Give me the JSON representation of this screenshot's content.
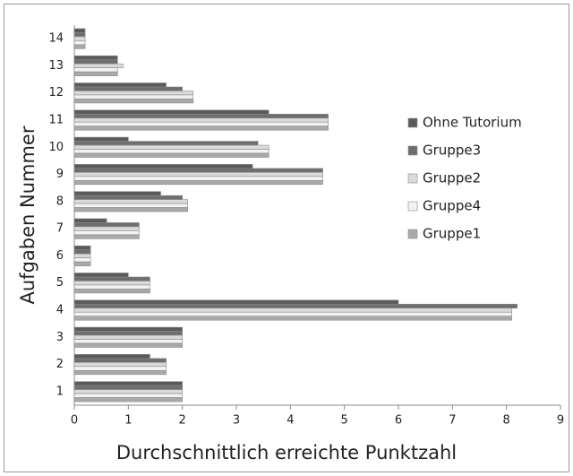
{
  "chart_data": {
    "type": "hbar",
    "xlabel": "Durchschnittlich erreichte Punktzahl",
    "ylabel": "Aufgaben Nummer",
    "categories": [
      "1",
      "2",
      "3",
      "4",
      "5",
      "6",
      "7",
      "8",
      "9",
      "10",
      "11",
      "12",
      "13",
      "14"
    ],
    "series": [
      {
        "name": "Ohne Tutorium",
        "color": "#5a5a5a",
        "values": [
          2,
          1.4,
          2,
          6,
          1,
          0.3,
          0.6,
          1.6,
          3.3,
          1,
          3.6,
          1.7,
          0.8,
          0.2
        ]
      },
      {
        "name": "Gruppe3",
        "color": "#6e6e6e",
        "values": [
          2,
          1.7,
          2,
          8.2,
          1.4,
          0.3,
          1.2,
          2,
          4.6,
          3.4,
          4.7,
          2,
          0.8,
          0.2
        ]
      },
      {
        "name": "Gruppe2",
        "color": "#dadada",
        "values": [
          2,
          1.7,
          2,
          8.1,
          1.4,
          0.3,
          1.2,
          2.1,
          4.6,
          3.6,
          4.7,
          2.2,
          0.9,
          0.2
        ]
      },
      {
        "name": "Gruppe4",
        "color": "#f2f2f2",
        "values": [
          2,
          1.7,
          2,
          8.1,
          1.4,
          0.3,
          1.2,
          2.1,
          4.6,
          3.6,
          4.7,
          2.2,
          0.8,
          0.2
        ]
      },
      {
        "name": "Gruppe1",
        "color": "#a9a9a9",
        "values": [
          2,
          1.7,
          2,
          8.1,
          1.4,
          0.3,
          1.2,
          2.1,
          4.6,
          3.6,
          4.7,
          2.2,
          0.8,
          0.2
        ]
      }
    ],
    "xlim": [
      0,
      9
    ],
    "xticks": [
      0,
      1,
      2,
      3,
      4,
      5,
      6,
      7,
      8,
      9
    ],
    "legend": "right"
  }
}
